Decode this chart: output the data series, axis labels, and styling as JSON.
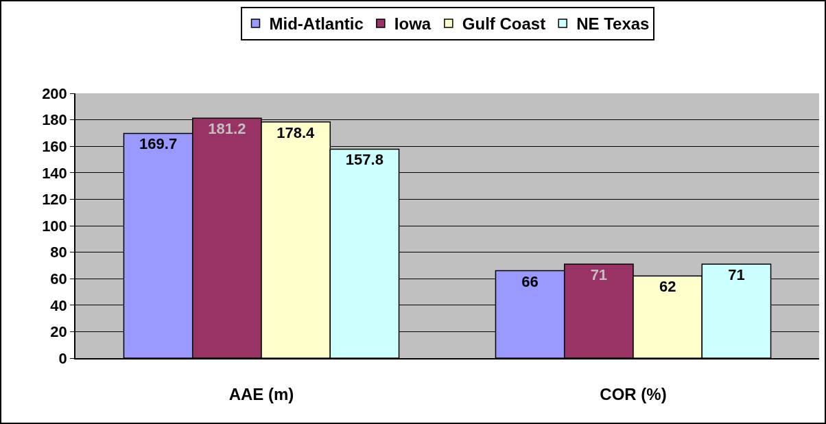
{
  "chart_data": {
    "type": "bar",
    "categories": [
      "AAE (m)",
      "COR (%)"
    ],
    "series": [
      {
        "name": "Mid-Atlantic",
        "color": "#9999ff",
        "values": [
          169.7,
          66
        ]
      },
      {
        "name": "Iowa",
        "color": "#993366",
        "values": [
          181.2,
          71
        ]
      },
      {
        "name": "Gulf Coast",
        "color": "#ffffcc",
        "values": [
          178.4,
          62
        ]
      },
      {
        "name": "NE Texas",
        "color": "#ccffff",
        "values": [
          157.8,
          71
        ]
      }
    ],
    "ylim": [
      0,
      200
    ],
    "yticks": [
      0,
      20,
      40,
      60,
      80,
      100,
      120,
      140,
      160,
      180,
      200
    ],
    "grid": "y",
    "legend": "top",
    "data_labels": true
  }
}
